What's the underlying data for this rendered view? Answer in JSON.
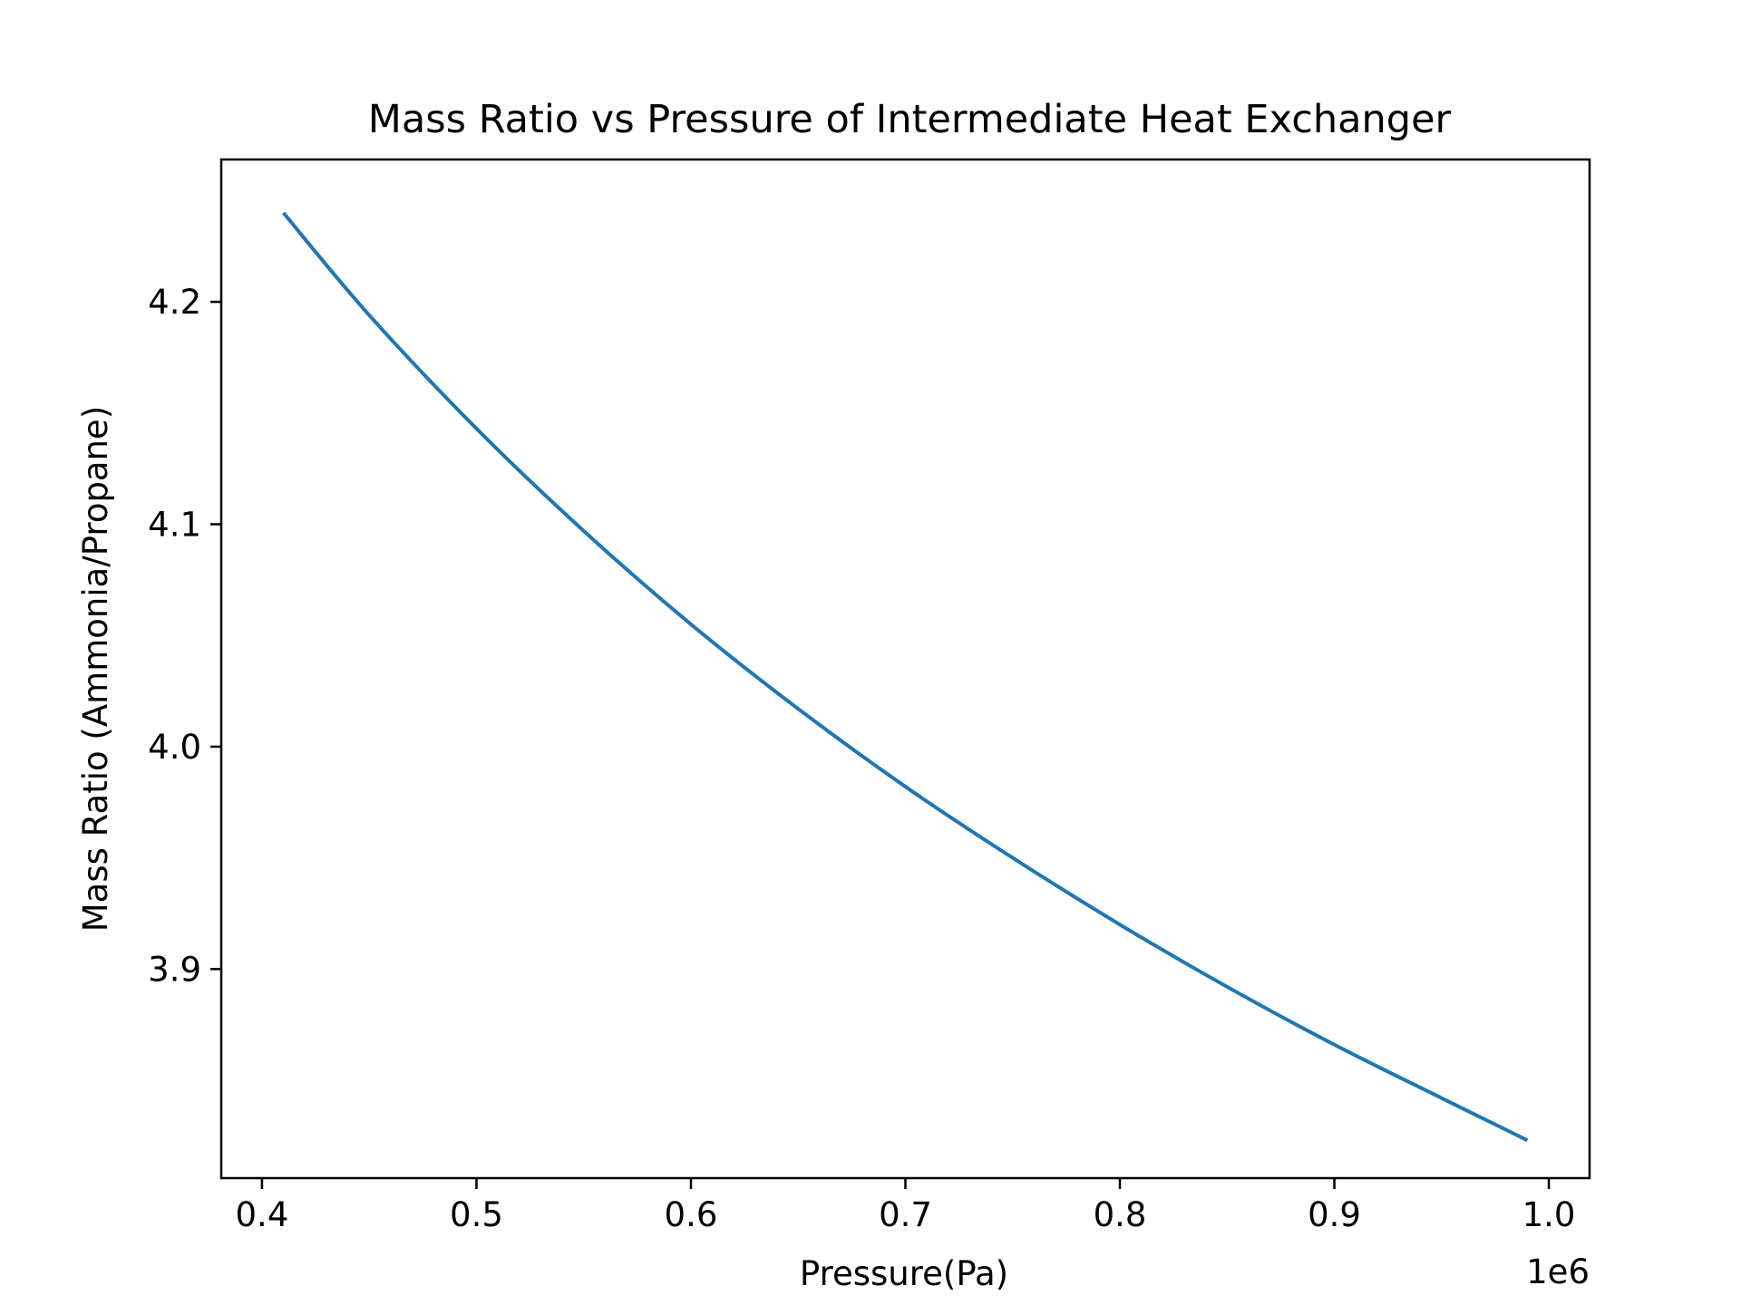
{
  "chart_data": {
    "type": "line",
    "title": "Mass Ratio vs Pressure of Intermediate Heat Exchanger",
    "xlabel": "Pressure(Pa)",
    "ylabel": "Mass Ratio (Ammonia/Propane)",
    "x_offset_label": "1e6",
    "xlim": [
      381000,
      1019000
    ],
    "ylim": [
      3.806,
      4.264
    ],
    "x_ticks": [
      400000,
      500000,
      600000,
      700000,
      800000,
      900000,
      1000000
    ],
    "x_tick_labels": [
      "0.4",
      "0.5",
      "0.6",
      "0.7",
      "0.8",
      "0.9",
      "1.0"
    ],
    "y_ticks": [
      3.9,
      4.0,
      4.1,
      4.2
    ],
    "y_tick_labels": [
      "3.9",
      "4.0",
      "4.1",
      "4.2"
    ],
    "grid": false,
    "legend": "none",
    "series": [
      {
        "color": "#1f77b4",
        "x": [
          410000,
          450000,
          500000,
          550000,
          600000,
          650000,
          700000,
          750000,
          800000,
          850000,
          900000,
          950000,
          990000
        ],
        "y": [
          4.24,
          4.194,
          4.143,
          4.097,
          4.055,
          4.017,
          3.982,
          3.95,
          3.92,
          3.892,
          3.866,
          3.842,
          3.823
        ]
      }
    ]
  }
}
